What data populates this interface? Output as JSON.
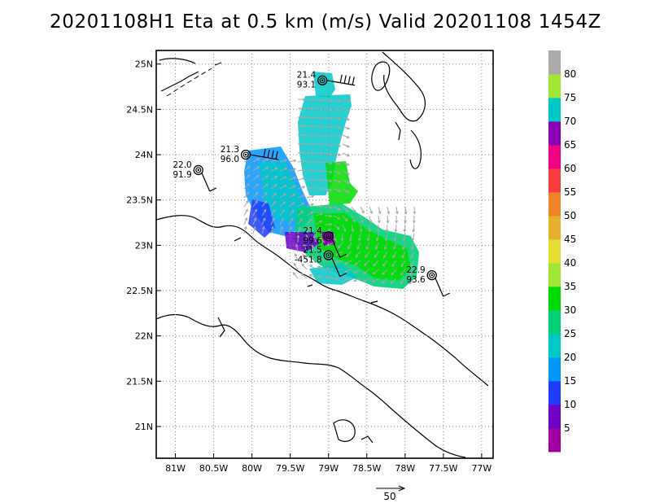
{
  "title": "20201108H1 Eta at 0.5 km (m/s) Valid 20201108  1454Z",
  "map": {
    "lon_range": [
      -81.25,
      -76.85
    ],
    "lat_range": [
      20.65,
      25.15
    ],
    "lon_ticks": [
      {
        "v": -81.0,
        "label": "81W"
      },
      {
        "v": -80.5,
        "label": "80.5W"
      },
      {
        "v": -80.0,
        "label": "80W"
      },
      {
        "v": -79.5,
        "label": "79.5W"
      },
      {
        "v": -79.0,
        "label": "79W"
      },
      {
        "v": -78.5,
        "label": "78.5W"
      },
      {
        "v": -78.0,
        "label": "78W"
      },
      {
        "v": -77.5,
        "label": "77.5W"
      },
      {
        "v": -77.0,
        "label": "77W"
      }
    ],
    "lat_ticks": [
      {
        "v": 21.0,
        "label": "21N"
      },
      {
        "v": 21.5,
        "label": "21.5N"
      },
      {
        "v": 22.0,
        "label": "22N"
      },
      {
        "v": 22.5,
        "label": "22.5N"
      },
      {
        "v": 23.0,
        "label": "23N"
      },
      {
        "v": 23.5,
        "label": "23.5N"
      },
      {
        "v": 24.0,
        "label": "24N"
      },
      {
        "v": 24.5,
        "label": "24.5N"
      },
      {
        "v": 25.0,
        "label": "25N"
      }
    ],
    "grid": "dotted"
  },
  "stations": [
    {
      "lon": -79.08,
      "lat": 24.82,
      "line1": "21.4",
      "line2": "93.1",
      "barb": "long"
    },
    {
      "lon": -80.08,
      "lat": 24.0,
      "line1": "21.3",
      "line2": "96.0",
      "barb": "long"
    },
    {
      "lon": -80.7,
      "lat": 23.83,
      "line1": "22.0",
      "line2": "91.9",
      "barb": "short"
    },
    {
      "lon": -79.0,
      "lat": 23.1,
      "line1": "21.4",
      "line2": "99.6",
      "barb": "short"
    },
    {
      "lon": -79.0,
      "lat": 22.89,
      "line1": "21.5",
      "line2": "-451.8",
      "barb": "short"
    },
    {
      "lon": -77.65,
      "lat": 22.67,
      "line1": "22.9",
      "line2": "93.6",
      "barb": "short"
    }
  ],
  "colorbar": {
    "levels": [
      {
        "label": "",
        "color": "#a0009f"
      },
      {
        "label": "5",
        "color": "#6e00c8"
      },
      {
        "label": "10",
        "color": "#1e3cff"
      },
      {
        "label": "15",
        "color": "#0096ff"
      },
      {
        "label": "20",
        "color": "#00c8c8"
      },
      {
        "label": "25",
        "color": "#00d27a"
      },
      {
        "label": "30",
        "color": "#00dc00"
      },
      {
        "label": "35",
        "color": "#a0e632"
      },
      {
        "label": "40",
        "color": "#e6dc32"
      },
      {
        "label": "45",
        "color": "#e6af2d"
      },
      {
        "label": "50",
        "color": "#f08228"
      },
      {
        "label": "55",
        "color": "#fa3c3c"
      },
      {
        "label": "60",
        "color": "#f00082"
      },
      {
        "label": "65",
        "color": "#8c00b4"
      },
      {
        "label": "70",
        "color": "#00c8c8"
      },
      {
        "label": "75",
        "color": "#a0e632"
      },
      {
        "label": "80",
        "color": "#aaaaaa"
      }
    ]
  },
  "vector_scale": {
    "label": "50"
  }
}
